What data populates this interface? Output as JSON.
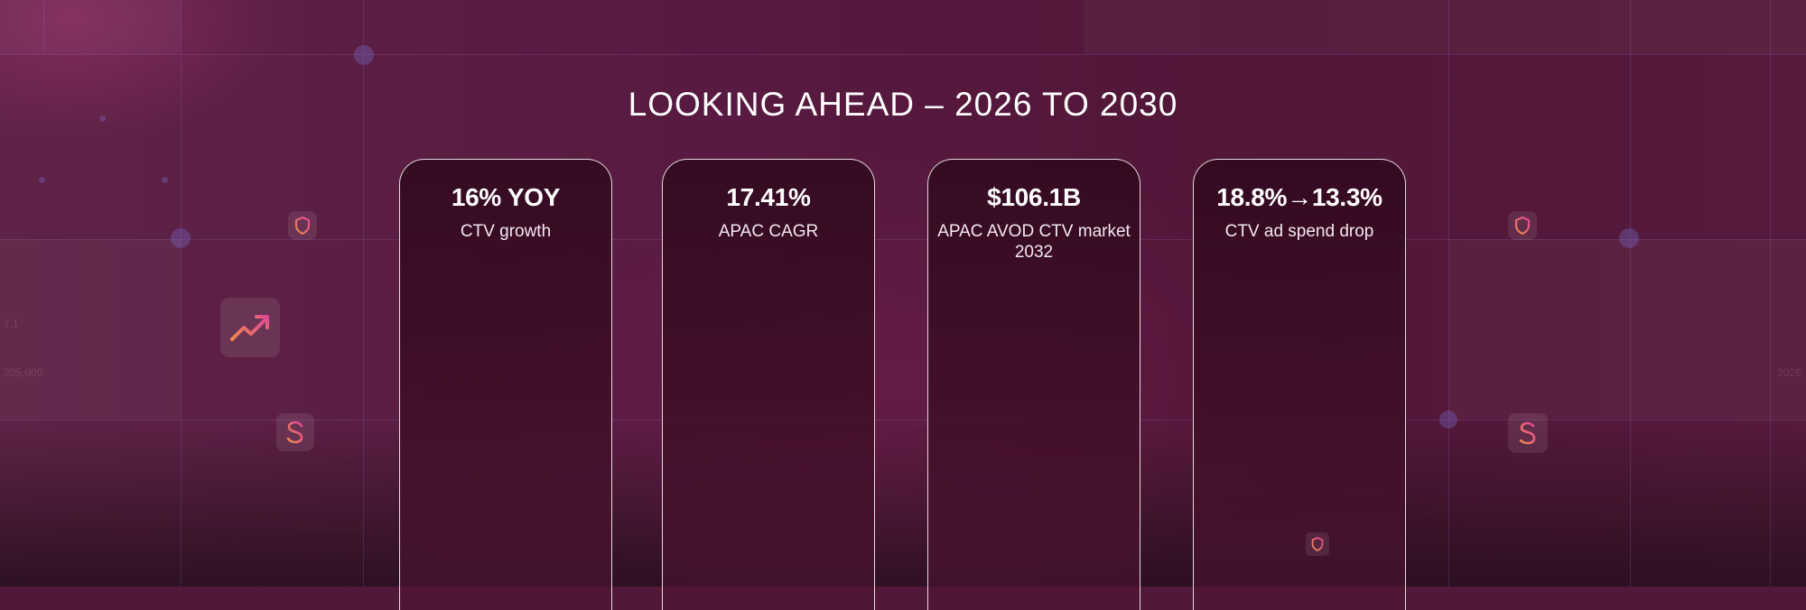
{
  "slide": {
    "title": "LOOKING AHEAD – 2026 TO 2030"
  },
  "cards": [
    {
      "value": "16% YOY",
      "label": "CTV growth"
    },
    {
      "value": "17.41%",
      "label": "APAC CAGR"
    },
    {
      "value": "$106.1B",
      "label": "APAC AVOD CTV market 2032"
    },
    {
      "value": "18.8%→13.3%",
      "label": "CTV ad spend drop"
    }
  ],
  "background_icons": [
    "trending-up-icon",
    "dollar-icon",
    "shield-icon",
    "exchange-icon"
  ],
  "colors": {
    "background": "#52183a",
    "card_border": "#ffffff",
    "icon_accent_start": "#f08a4b",
    "icon_accent_end": "#e0449a"
  }
}
